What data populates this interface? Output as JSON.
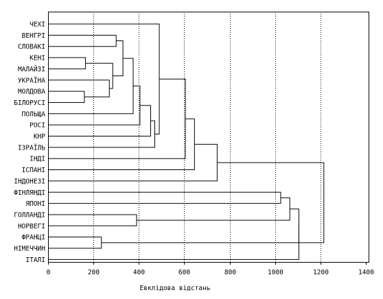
{
  "chart_data": {
    "type": "dendrogram",
    "xlabel": "Евклідова відстань",
    "xlim": [
      0,
      1400
    ],
    "x_ticks": [
      0,
      200,
      400,
      600,
      800,
      1000,
      1200,
      1400
    ],
    "x_tick_labels": [
      "0",
      "200",
      "400",
      "600",
      "800",
      "1000",
      "1200",
      "1400"
    ],
    "grid": "vertical dotted lines at 200, 400, 600, 800, 1000, 1200",
    "leaves": [
      "ЧЕХІ",
      "ВЕНГРІ",
      "СЛОВАКІ",
      "КЕНІ",
      "МАЛАЙЗІ",
      "УКРАЇНА",
      "МОЛДОВА",
      "БІЛОРУСІ",
      "ПОЛЬЩА",
      "РОСІ",
      "КНР",
      "ІЗРАЇЛЬ",
      "ІНДІ",
      "ІСПАНІ",
      "ІНДОНЕЗІ",
      "ФІНЛЯНДІ",
      "ЯПОНІ",
      "ГОЛЛАНДІ",
      "НОРВЕГІ",
      "ФРАНЦІ",
      "НІМЕЧЧИН",
      "ІТАЛІ"
    ],
    "merges": [
      {
        "id": "c1",
        "a": "КЕНІ",
        "b": "МАЛАЙЗІ",
        "distance": 165
      },
      {
        "id": "c2",
        "a": "МОЛДОВА",
        "b": "БІЛОРУСІ",
        "distance": 160
      },
      {
        "id": "c3",
        "a": "ФРАНЦІ",
        "b": "НІМЕЧЧИН",
        "distance": 235
      },
      {
        "id": "c4",
        "a": "УКРАЇНА",
        "b": "c2",
        "distance": 270
      },
      {
        "id": "c5",
        "a": "c1",
        "b": "c4",
        "distance": 285
      },
      {
        "id": "c6",
        "a": "ВЕНГРІ",
        "b": "СЛОВАКІ",
        "distance": 300
      },
      {
        "id": "c7",
        "a": "c6",
        "b": "c5",
        "distance": 330
      },
      {
        "id": "c8",
        "a": "ГОЛЛАНДІ",
        "b": "НОРВЕГІ",
        "distance": 390
      },
      {
        "id": "c9",
        "a": "c7",
        "b": "ПОЛЬЩА",
        "distance": 375
      },
      {
        "id": "c10",
        "a": "c9",
        "b": "РОСІ",
        "distance": 405
      },
      {
        "id": "c11",
        "a": "c10",
        "b": "КНР",
        "distance": 452
      },
      {
        "id": "c12",
        "a": "c11",
        "b": "ІЗРАЇЛЬ",
        "distance": 470
      },
      {
        "id": "c13",
        "a": "ЧЕХІ",
        "b": "c12",
        "distance": 490
      },
      {
        "id": "c14",
        "a": "c13",
        "b": "ІНДІ",
        "distance": 605
      },
      {
        "id": "c15",
        "a": "c14",
        "b": "ІСПАНІ",
        "distance": 645
      },
      {
        "id": "c16",
        "a": "c15",
        "b": "ІНДОНЕЗІ",
        "distance": 745
      },
      {
        "id": "c17",
        "a": "ФІНЛЯНДІ",
        "b": "ЯПОНІ",
        "distance": 1025
      },
      {
        "id": "c18",
        "a": "c17",
        "b": "c8",
        "distance": 1065
      },
      {
        "id": "c19",
        "a": "c18",
        "b": "c3",
        "distance": 1105
      },
      {
        "id": "c20",
        "a": "c19",
        "b": "ІТАЛІ",
        "distance": 1105
      },
      {
        "id": "c21",
        "a": "c16",
        "b": "c20",
        "distance": 1215
      }
    ]
  }
}
